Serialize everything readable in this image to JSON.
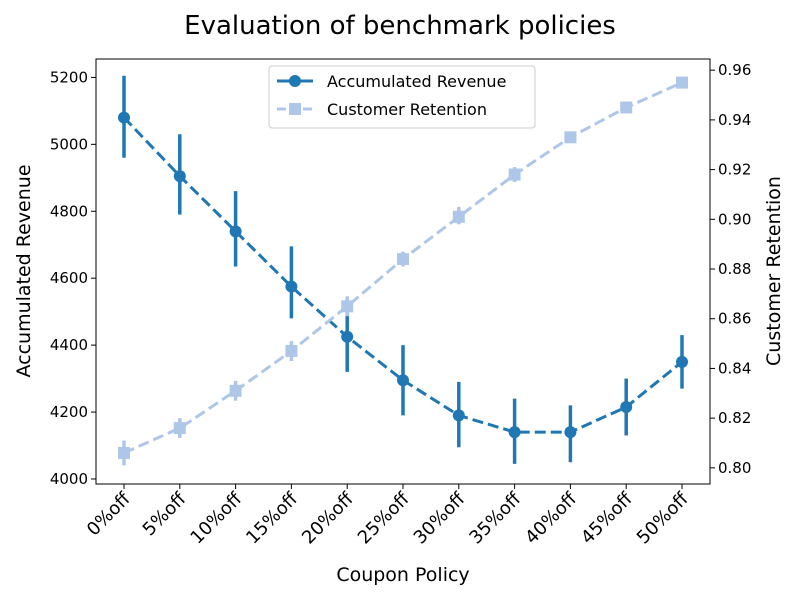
{
  "chart_data": {
    "type": "line",
    "title": "Evaluation of benchmark policies",
    "xlabel": "Coupon Policy",
    "ylabel_left": "Accumulated Revenue",
    "ylabel_right": "Customer Retention",
    "categories": [
      "0%off",
      "5%off",
      "10%off",
      "15%off",
      "20%off",
      "25%off",
      "30%off",
      "35%off",
      "40%off",
      "45%off",
      "50%off"
    ],
    "ylim_left": [
      3985,
      5255
    ],
    "ylim_right": [
      0.7935,
      0.9645
    ],
    "yticks_left": [
      "4000",
      "4200",
      "4400",
      "4600",
      "4800",
      "5000",
      "5200"
    ],
    "yticks_right": [
      "0.80",
      "0.82",
      "0.84",
      "0.86",
      "0.88",
      "0.90",
      "0.92",
      "0.94",
      "0.96"
    ],
    "legend_position": "top-center",
    "series": [
      {
        "name": "Accumulated Revenue",
        "axis": "left",
        "color": "#1f77b4",
        "marker": "circle",
        "values": [
          5080,
          4905,
          4740,
          4575,
          4425,
          4295,
          4190,
          4140,
          4140,
          4215,
          4350
        ],
        "err_low": [
          4960,
          4790,
          4635,
          4480,
          4320,
          4190,
          4095,
          4045,
          4050,
          4130,
          4270
        ],
        "err_high": [
          5205,
          5030,
          4860,
          4695,
          4505,
          4400,
          4290,
          4240,
          4220,
          4300,
          4430
        ]
      },
      {
        "name": "Customer Retention",
        "axis": "right",
        "color": "#aec7e8",
        "marker": "square",
        "values": [
          0.806,
          0.816,
          0.831,
          0.847,
          0.865,
          0.884,
          0.901,
          0.918,
          0.933,
          0.945,
          0.955
        ],
        "err_low": [
          0.801,
          0.812,
          0.827,
          0.843,
          0.861,
          0.881,
          0.898,
          0.915,
          0.931,
          0.943,
          0.953
        ],
        "err_high": [
          0.811,
          0.82,
          0.835,
          0.851,
          0.869,
          0.887,
          0.905,
          0.921,
          0.935,
          0.947,
          0.957
        ]
      }
    ]
  }
}
